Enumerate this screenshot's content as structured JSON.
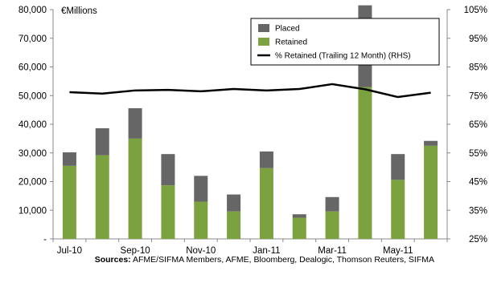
{
  "chart_data": {
    "type": "bar",
    "stacked": true,
    "unit_label": "€Millions",
    "categories": [
      "Jul-10",
      "Aug-10",
      "Sep-10",
      "Oct-10",
      "Nov-10",
      "Dec-10",
      "Jan-11",
      "Feb-11",
      "Mar-11",
      "Apr-11",
      "May-11",
      "Jun-11"
    ],
    "x_tick_labels": [
      "Jul-10",
      "Sep-10",
      "Nov-10",
      "Jan-11",
      "Mar-11",
      "May-11"
    ],
    "series": [
      {
        "name": "Retained",
        "axis": "left",
        "color": "#7ba23f",
        "values": [
          25500,
          29200,
          35000,
          18700,
          13000,
          9600,
          24700,
          7400,
          9600,
          53000,
          20600,
          32500
        ]
      },
      {
        "name": "Placed",
        "axis": "left",
        "color": "#666666",
        "values": [
          4700,
          9400,
          10600,
          10900,
          9000,
          5900,
          5800,
          1200,
          5000,
          28500,
          9000,
          1700
        ]
      },
      {
        "name": "% Retained (Trailing 12 Month) (RHS)",
        "axis": "right",
        "type": "line",
        "color": "#000000",
        "values": [
          76.2,
          75.7,
          76.8,
          77.0,
          76.5,
          77.3,
          76.8,
          77.3,
          79.0,
          77.2,
          74.5,
          76.0
        ]
      }
    ],
    "legend_order": [
      "Placed",
      "Retained",
      "% Retained (Trailing 12 Month) (RHS)"
    ],
    "legend_position": "top-right",
    "ylim": [
      0,
      80000
    ],
    "y_ticks": [
      0,
      10000,
      20000,
      30000,
      40000,
      50000,
      60000,
      70000,
      80000
    ],
    "y_tick_labels": [
      "-",
      "10,000",
      "20,000",
      "30,000",
      "40,000",
      "50,000",
      "60,000",
      "70,000",
      "80,000"
    ],
    "y2lim": [
      25,
      105
    ],
    "y2_ticks": [
      25,
      35,
      45,
      55,
      65,
      75,
      85,
      95,
      105
    ],
    "y2_tick_labels": [
      "25%",
      "35%",
      "45%",
      "55%",
      "65%",
      "75%",
      "85%",
      "95%",
      "105%"
    ],
    "grid": false
  },
  "source": {
    "label": "Sources:",
    "text": " AFME/SIFMA Members, AFME, Bloomberg, Dealogic, Thomson Reuters, SIFMA"
  }
}
